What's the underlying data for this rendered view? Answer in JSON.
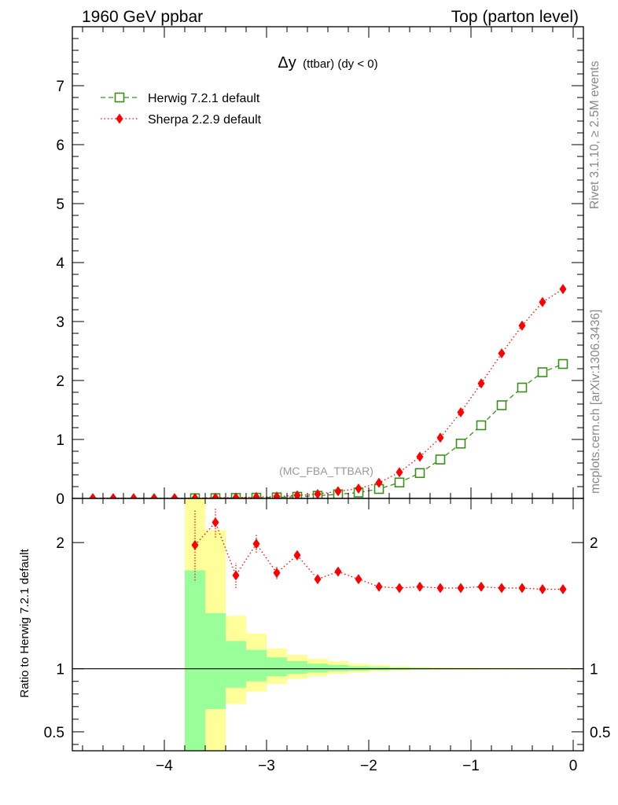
{
  "header": {
    "left": "1960 GeV ppbar",
    "right": "Top (parton level)"
  },
  "side_labels": {
    "rivet": "Rivet 3.1.10, ≥ 2.5M events",
    "mcplots": "mcplots.cern.ch [arXiv:1306.3436]"
  },
  "watermark": "(MC_FBA_TTBAR)",
  "plot_title": {
    "main": "Δy",
    "sub": "(ttbar) (dy < 0)"
  },
  "ratio_ylabel": "Ratio to Herwig 7.2.1 default",
  "colors": {
    "herwig": "#3a8f1a",
    "sherpa": "#ff0000",
    "band_inner": "#99ff99",
    "band_outer": "#ffff99"
  },
  "chart_data": [
    {
      "type": "line",
      "panel": "main",
      "xlim": [
        -4.9,
        0.1
      ],
      "ylim": [
        0,
        8
      ],
      "x_ticks": [
        -4,
        -3,
        -2,
        -1,
        0
      ],
      "y_ticks": [
        0,
        1,
        2,
        3,
        4,
        5,
        6,
        7
      ],
      "y_tick_labels": [
        "0",
        "1",
        "2",
        "3",
        "4",
        "5",
        "6",
        "7"
      ],
      "legend_position": "top-left",
      "x": [
        -4.7,
        -4.5,
        -4.3,
        -4.1,
        -3.9,
        -3.7,
        -3.5,
        -3.3,
        -3.1,
        -2.9,
        -2.7,
        -2.5,
        -2.3,
        -2.1,
        -1.9,
        -1.7,
        -1.5,
        -1.3,
        -1.1,
        -0.9,
        -0.7,
        -0.5,
        -0.3,
        -0.1
      ],
      "series": [
        {
          "name": "Herwig 7.2.1 default",
          "marker": "open-square",
          "line": "dashed",
          "x_first": -3.7,
          "values": [
            0.0,
            0.0,
            0.0,
            0.0,
            0.0,
            0.003,
            0.005,
            0.008,
            0.012,
            0.018,
            0.028,
            0.045,
            0.07,
            0.1,
            0.16,
            0.27,
            0.43,
            0.66,
            0.93,
            1.24,
            1.58,
            1.88,
            2.14,
            2.28
          ]
        },
        {
          "name": "Sherpa 2.2.9 default",
          "marker": "filled-diamond",
          "line": "dotted",
          "x_first": -4.7,
          "values": [
            0.005,
            0.005,
            0.005,
            0.005,
            0.005,
            0.006,
            0.011,
            0.014,
            0.024,
            0.031,
            0.052,
            0.074,
            0.121,
            0.166,
            0.265,
            0.443,
            0.706,
            1.03,
            1.46,
            1.95,
            2.46,
            2.93,
            3.33,
            3.55
          ]
        }
      ]
    },
    {
      "type": "line",
      "panel": "ratio",
      "xlim": [
        -4.9,
        0.1
      ],
      "ylim": [
        0.35,
        2.35
      ],
      "reference_line": 1,
      "x_ticks": [
        -4,
        -3,
        -2,
        -1,
        0
      ],
      "x_tick_labels": [
        "−4",
        "−3",
        "−2",
        "−1",
        "0"
      ],
      "y_ticks": [
        0.5,
        1,
        2
      ],
      "y_tick_labels": [
        "0.5",
        "1",
        "2"
      ],
      "bands": {
        "x_edges": [
          -3.8,
          -3.6,
          -3.4,
          -3.2,
          -3.0,
          -2.8,
          -2.6,
          -2.4,
          -2.2,
          -2.0,
          -1.8,
          -1.6,
          -1.4,
          -1.2,
          -1.0,
          -0.8,
          -0.6,
          -0.4,
          -0.2,
          0.0
        ],
        "inner": [
          [
            0.35,
            1.78
          ],
          [
            0.68,
            1.44
          ],
          [
            0.85,
            1.22
          ],
          [
            0.9,
            1.15
          ],
          [
            0.94,
            1.09
          ],
          [
            0.96,
            1.06
          ],
          [
            0.97,
            1.04
          ],
          [
            0.98,
            1.03
          ],
          [
            0.985,
            1.02
          ],
          [
            0.99,
            1.015
          ],
          [
            0.993,
            1.01
          ],
          [
            0.995,
            1.008
          ],
          [
            0.996,
            1.006
          ],
          [
            0.997,
            1.005
          ],
          [
            0.997,
            1.004
          ],
          [
            0.998,
            1.004
          ],
          [
            0.998,
            1.003
          ],
          [
            0.998,
            1.003
          ],
          [
            0.998,
            1.003
          ]
        ],
        "outer": [
          [
            0.35,
            2.35
          ],
          [
            0.35,
            2.1
          ],
          [
            0.72,
            1.42
          ],
          [
            0.82,
            1.28
          ],
          [
            0.88,
            1.16
          ],
          [
            0.92,
            1.11
          ],
          [
            0.94,
            1.08
          ],
          [
            0.96,
            1.06
          ],
          [
            0.97,
            1.04
          ],
          [
            0.98,
            1.03
          ],
          [
            0.985,
            1.02
          ],
          [
            0.99,
            1.015
          ],
          [
            0.992,
            1.012
          ],
          [
            0.993,
            1.01
          ],
          [
            0.994,
            1.009
          ],
          [
            0.995,
            1.008
          ],
          [
            0.996,
            1.007
          ],
          [
            0.996,
            1.006
          ],
          [
            0.996,
            1.006
          ]
        ]
      },
      "series": [
        {
          "name": "Sherpa 2.2.9 default",
          "x": [
            -3.7,
            -3.5,
            -3.3,
            -3.1,
            -2.9,
            -2.7,
            -2.5,
            -2.3,
            -2.1,
            -1.9,
            -1.7,
            -1.5,
            -1.3,
            -1.1,
            -0.9,
            -0.7,
            -0.5,
            -0.3,
            -0.1
          ],
          "values": [
            1.98,
            2.16,
            1.74,
            1.99,
            1.76,
            1.9,
            1.71,
            1.77,
            1.71,
            1.65,
            1.64,
            1.65,
            1.64,
            1.64,
            1.65,
            1.64,
            1.64,
            1.63,
            1.63
          ],
          "errors": [
            0.28,
            0.12,
            0.1,
            0.07,
            0.05,
            0.04,
            0.025,
            0.02,
            0.015,
            0.01,
            0.01,
            0.008,
            0.006,
            0.005,
            0.005,
            0.004,
            0.004,
            0.004,
            0.004
          ]
        }
      ]
    }
  ]
}
